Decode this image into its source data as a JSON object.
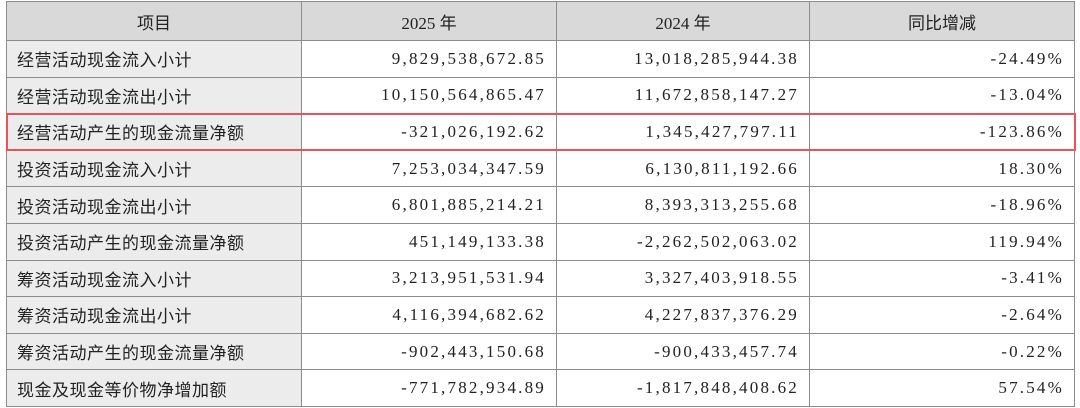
{
  "table": {
    "header": [
      "项目",
      "2025 年",
      "2024 年",
      "同比增减"
    ],
    "rows": [
      [
        "经营活动现金流入小计",
        "9,829,538,672.85",
        "13,018,285,944.38",
        "-24.49%"
      ],
      [
        "经营活动现金流出小计",
        "10,150,564,865.47",
        "11,672,858,147.27",
        "-13.04%"
      ],
      [
        "经营活动产生的现金流量净额",
        "-321,026,192.62",
        "1,345,427,797.11",
        "-123.86%"
      ],
      [
        "投资活动现金流入小计",
        "7,253,034,347.59",
        "6,130,811,192.66",
        "18.30%"
      ],
      [
        "投资活动现金流出小计",
        "6,801,885,214.21",
        "8,393,313,255.68",
        "-18.96%"
      ],
      [
        "投资活动产生的现金流量净额",
        "451,149,133.38",
        "-2,262,502,063.02",
        "119.94%"
      ],
      [
        "筹资活动现金流入小计",
        "3,213,951,531.94",
        "3,327,403,918.55",
        "-3.41%"
      ],
      [
        "筹资活动现金流出小计",
        "4,116,394,682.62",
        "4,227,837,376.29",
        "-2.64%"
      ],
      [
        "筹资活动产生的现金流量净额",
        "-902,443,150.68",
        "-900,433,457.74",
        "-0.22%"
      ],
      [
        "现金及现金等价物净增加额",
        "-771,782,934.89",
        "-1,817,848,408.62",
        "57.54%"
      ]
    ]
  }
}
